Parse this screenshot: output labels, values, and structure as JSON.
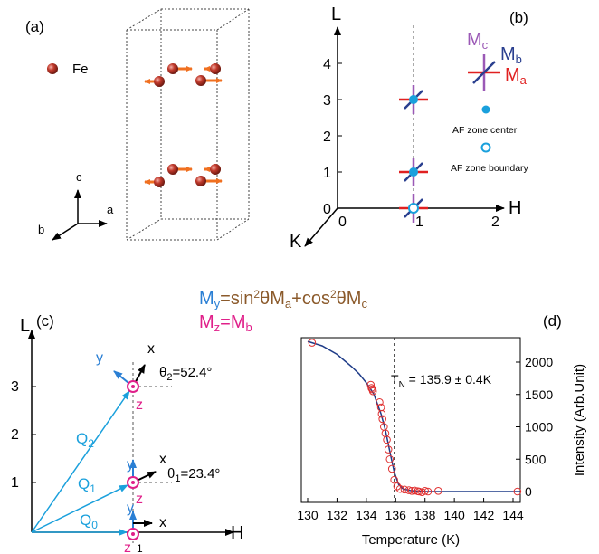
{
  "panels": {
    "a": {
      "label": "(a)",
      "legend": "Fe",
      "axes": {
        "a": "a",
        "b": "b",
        "c": "c"
      }
    },
    "b": {
      "label": "(b)",
      "axis_L": "L",
      "axis_H": "H",
      "axis_K": "K",
      "l_ticks": [
        "0",
        "1",
        "2",
        "3",
        "4"
      ],
      "h_ticks": [
        "0",
        "1",
        "2"
      ],
      "moment_labels": {
        "Mc": "M",
        "Mc_sub": "c",
        "Mb": "M",
        "Mb_sub": "b",
        "Ma": "M",
        "Ma_sub": "a"
      },
      "legend_center": "AF zone center",
      "legend_boundary": "AF zone boundary"
    },
    "formula": {
      "my_M": "M",
      "my_sub": "y",
      "my_eq": "=sin",
      "my_sup": "2",
      "my_theta": "θM",
      "my_a": "a",
      "my_plus": "+cos",
      "my_sup2": "2",
      "my_theta2": "θM",
      "my_c": "c",
      "mz_M": "M",
      "mz_sub": "z",
      "mz_eq": "=M",
      "mz_b": "b"
    },
    "c": {
      "label": "(c)",
      "axis_L": "L",
      "axis_H": "H",
      "l_ticks": [
        "1",
        "2",
        "3"
      ],
      "q_labels": {
        "Q0": "Q",
        "Q0_sub": "0",
        "Q1": "Q",
        "Q1_sub": "1",
        "Q2": "Q",
        "Q2_sub": "2"
      },
      "theta1": "θ",
      "theta1_sub": "1",
      "theta1_val": "=23.4°",
      "theta2": "θ",
      "theta2_sub": "2",
      "theta2_val": "=52.4°",
      "x": "x",
      "y": "y",
      "z": "z",
      "one": "1"
    },
    "d": {
      "label": "(d)",
      "tn_label": "T",
      "tn_sub": "N",
      "tn_value": " = 135.9 ± 0.4K"
    }
  },
  "colors": {
    "fe_atom": "#b22222",
    "spin_arrow": "#f07020",
    "cyan": "#1aa0dc",
    "ma_red": "#e02020",
    "mb_blue": "#2a3f8f",
    "mc_purple": "#9b59b6",
    "my_blue": "#2a7fd4",
    "theta_brown": "#8b5a2b",
    "mz_magenta": "#e0208a",
    "fit_line": "#1f3c88",
    "data_red": "#e03030"
  },
  "chart_data": {
    "type": "scatter",
    "xlabel": "Temperature (K)",
    "ylabel": "Intensity (Arb.Unit)",
    "xlim": [
      130,
      145
    ],
    "ylim": [
      -200,
      2400
    ],
    "xticks": [
      130,
      132,
      134,
      136,
      138,
      140,
      142,
      144
    ],
    "yticks": [
      0,
      500,
      1000,
      1500,
      2000
    ],
    "vline_x": 135.9,
    "series": [
      {
        "kind": "points",
        "x": [
          130.3,
          134.3,
          134.35,
          134.4,
          134.45,
          134.9,
          135.0,
          135.05,
          135.1,
          135.2,
          135.3,
          135.4,
          135.5,
          135.6,
          135.75,
          135.9,
          136.1,
          136.3,
          136.6,
          136.9,
          137.1,
          137.3,
          137.5,
          137.6,
          137.8,
          138.0,
          138.2,
          138.9,
          144.3
        ],
        "y": [
          2300,
          1650,
          1600,
          1580,
          1550,
          1380,
          1300,
          1200,
          1120,
          1000,
          900,
          800,
          650,
          500,
          350,
          180,
          80,
          40,
          30,
          20,
          10,
          15,
          5,
          0,
          -10,
          10,
          0,
          10,
          0
        ]
      },
      {
        "kind": "fit",
        "x": [
          130,
          131,
          132,
          133,
          133.5,
          134,
          134.5,
          135,
          135.3,
          135.6,
          135.9,
          136.2,
          136.5,
          137,
          137.5,
          138,
          139,
          140,
          142,
          144.5
        ],
        "y": [
          2320,
          2250,
          2120,
          1930,
          1820,
          1680,
          1510,
          1200,
          950,
          620,
          300,
          110,
          40,
          15,
          5,
          2,
          0,
          0,
          0,
          0
        ]
      }
    ]
  }
}
